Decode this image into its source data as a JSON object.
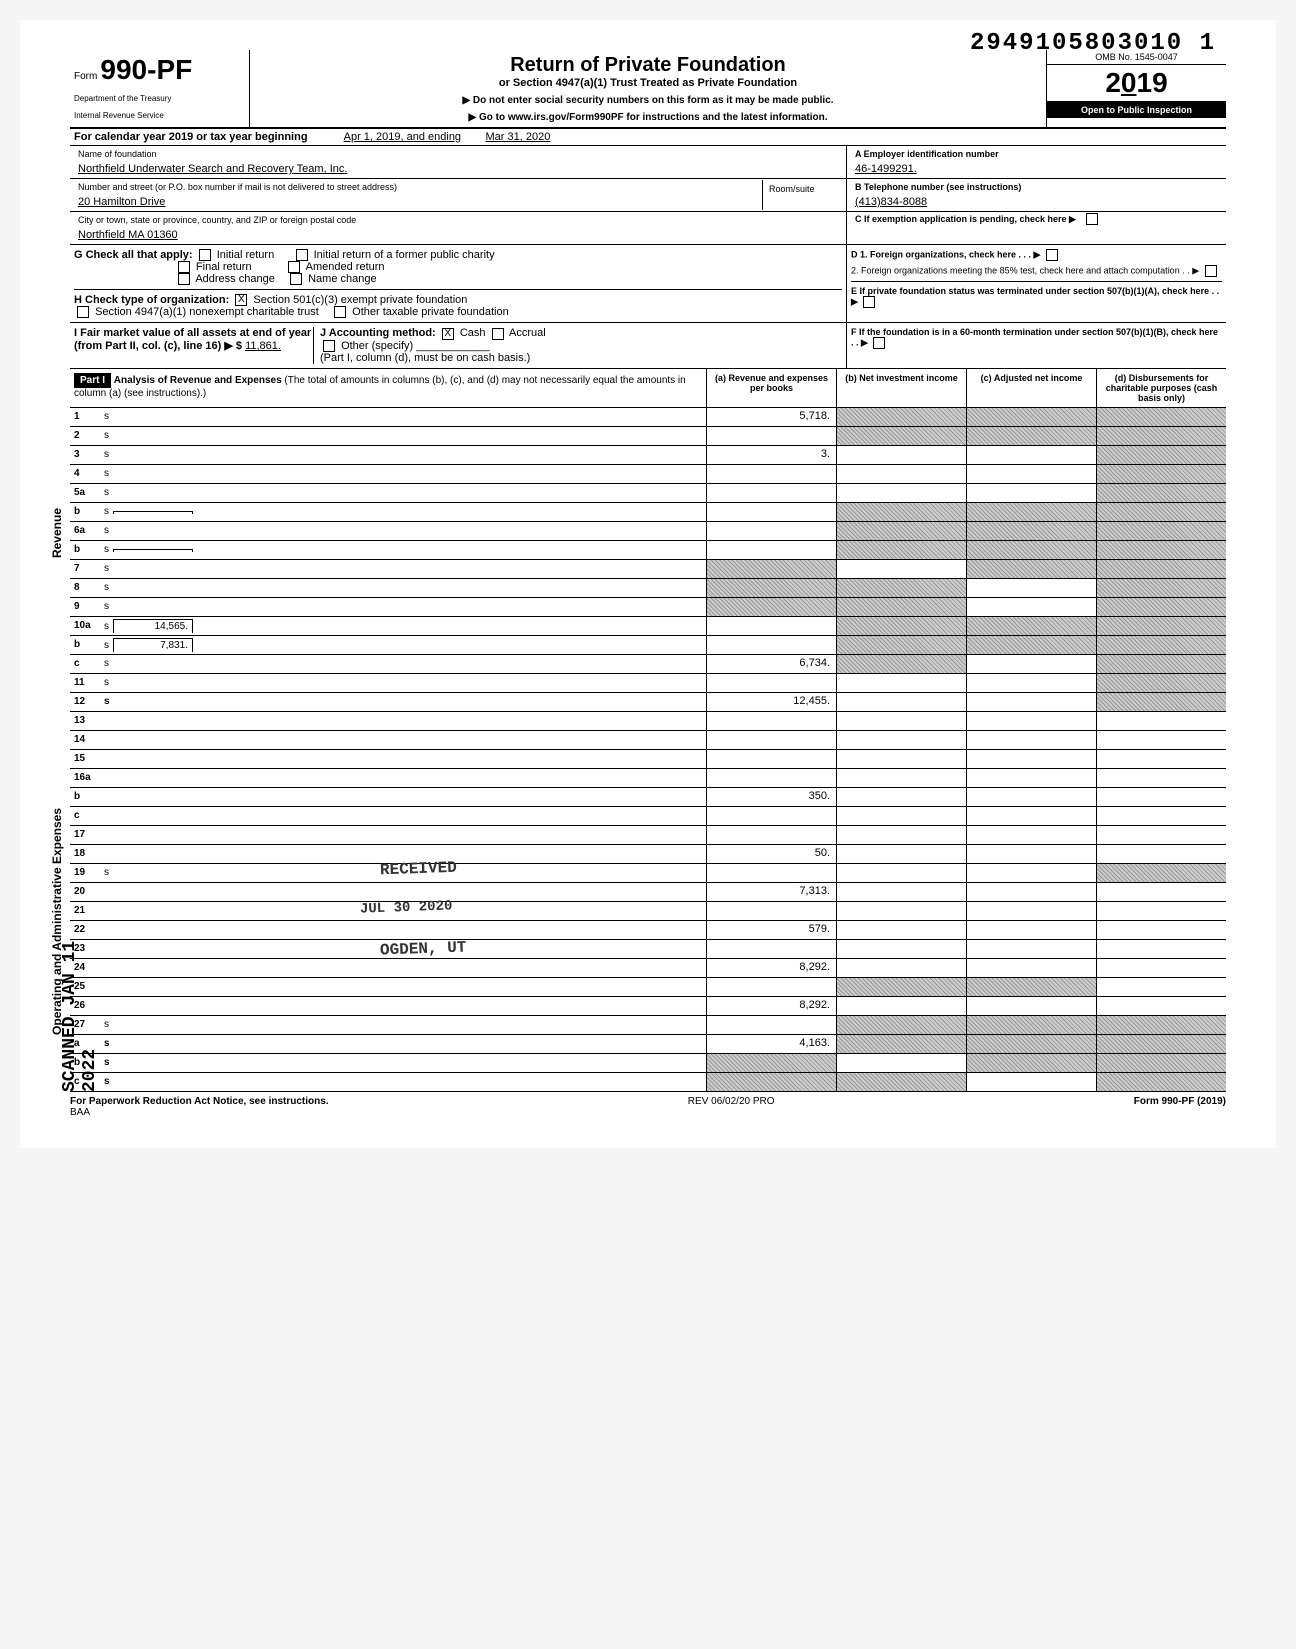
{
  "barcode": "2949105803010 1",
  "form_number_prefix": "Form",
  "form_number": "990-PF",
  "dept1": "Department of the Treasury",
  "dept2": "Internal Revenue Service",
  "title_main": "Return of Private Foundation",
  "title_sub": "or Section 4947(a)(1) Trust Treated as Private Foundation",
  "title_note1": "▶ Do not enter social security numbers on this form as it may be made public.",
  "title_note2": "▶ Go to www.irs.gov/Form990PF for instructions and the latest information.",
  "omb": "OMB No. 1545-0047",
  "year": "2019",
  "inspection": "Open to Public Inspection",
  "cal_year": "For calendar year 2019 or tax year beginning",
  "tax_begin": "Apr 1, 2019, and ending",
  "tax_end": "Mar 31, 2020",
  "name_label": "Name of foundation",
  "name_value": "Northfield Underwater Search and Recovery Team, Inc.",
  "ein_label": "A  Employer identification number",
  "ein_value": "46-1499291.",
  "addr_label": "Number and street (or P.O. box number if mail is not delivered to street address)",
  "addr_value": "20 Hamilton Drive",
  "room_label": "Room/suite",
  "phone_label": "B  Telephone number (see instructions)",
  "phone_value": "(413)834-8088",
  "city_label": "City or town, state or province, country, and ZIP or foreign postal code",
  "city_value": "Northfield MA 01360",
  "c_label": "C  If exemption application is pending, check here ▶",
  "g_label": "G  Check all that apply:",
  "g_opts": [
    "Initial return",
    "Initial return of a former public charity",
    "Final return",
    "Amended return",
    "Address change",
    "Name change"
  ],
  "d1": "D 1. Foreign organizations, check here . . . ▶",
  "d2": "2. Foreign organizations meeting the 85% test, check here and attach computation . . ▶",
  "h_label": "H  Check type of organization:",
  "h_501": "Section 501(c)(3) exempt private foundation",
  "h_4947": "Section 4947(a)(1) nonexempt charitable trust",
  "h_other": "Other taxable private foundation",
  "e_label": "E  If private foundation status was terminated under section 507(b)(1)(A), check here . . ▶",
  "i_label": "I  Fair market value of all assets at end of year (from Part II, col. (c), line 16) ▶ $",
  "i_value": "11,861.",
  "j_label": "J  Accounting method:",
  "j_cash": "Cash",
  "j_accrual": "Accrual",
  "j_other": "Other (specify)",
  "j_note": "(Part I, column (d), must be on cash basis.)",
  "f_label": "F  If the foundation is in a 60-month termination under section 507(b)(1)(B), check here . . ▶",
  "part1": "Part I",
  "part1_title": "Analysis of Revenue and Expenses",
  "part1_note": "(The total of amounts in columns (b), (c), and (d) may not necessarily equal the amounts in column (a) (see instructions).)",
  "col_a": "(a) Revenue and expenses per books",
  "col_b": "(b) Net investment income",
  "col_c": "(c) Adjusted net income",
  "col_d": "(d) Disbursements for charitable purposes (cash basis only)",
  "side_revenue": "Revenue",
  "side_expenses": "Operating and Administrative Expenses",
  "scanned": "SCANNED JAN 11 2022",
  "lines": [
    {
      "n": "1",
      "d": "s",
      "a": "5,718.",
      "b": "s",
      "c": "s"
    },
    {
      "n": "2",
      "d": "s",
      "a": "",
      "b": "s",
      "c": "s"
    },
    {
      "n": "3",
      "d": "s",
      "a": "3.",
      "b": "",
      "c": ""
    },
    {
      "n": "4",
      "d": "s",
      "a": "",
      "b": "",
      "c": ""
    },
    {
      "n": "5a",
      "d": "s",
      "a": "",
      "b": "",
      "c": ""
    },
    {
      "n": "b",
      "d": "s",
      "a": "",
      "b": "s",
      "c": "s",
      "inset": ""
    },
    {
      "n": "6a",
      "d": "s",
      "a": "",
      "b": "s",
      "c": "s"
    },
    {
      "n": "b",
      "d": "s",
      "a": "",
      "b": "s",
      "c": "s",
      "inset": ""
    },
    {
      "n": "7",
      "d": "s",
      "a": "s",
      "b": "",
      "c": "s"
    },
    {
      "n": "8",
      "d": "s",
      "a": "s",
      "b": "s",
      "c": ""
    },
    {
      "n": "9",
      "d": "s",
      "a": "s",
      "b": "s",
      "c": ""
    },
    {
      "n": "10a",
      "d": "s",
      "a": "",
      "b": "s",
      "c": "s",
      "inset": "14,565."
    },
    {
      "n": "b",
      "d": "s",
      "a": "",
      "b": "s",
      "c": "s",
      "inset": "7,831."
    },
    {
      "n": "c",
      "d": "s",
      "a": "6,734.",
      "b": "s",
      "c": ""
    },
    {
      "n": "11",
      "d": "s",
      "a": "",
      "b": "",
      "c": ""
    },
    {
      "n": "12",
      "d": "s",
      "a": "12,455.",
      "b": "",
      "c": "",
      "bold": true
    },
    {
      "n": "13",
      "d": "",
      "a": "",
      "b": "",
      "c": ""
    },
    {
      "n": "14",
      "d": "",
      "a": "",
      "b": "",
      "c": ""
    },
    {
      "n": "15",
      "d": "",
      "a": "",
      "b": "",
      "c": ""
    },
    {
      "n": "16a",
      "d": "",
      "a": "",
      "b": "",
      "c": ""
    },
    {
      "n": "b",
      "d": "",
      "a": "350.",
      "b": "",
      "c": ""
    },
    {
      "n": "c",
      "d": "",
      "a": "",
      "b": "",
      "c": ""
    },
    {
      "n": "17",
      "d": "",
      "a": "",
      "b": "",
      "c": ""
    },
    {
      "n": "18",
      "d": "",
      "a": "50.",
      "b": "",
      "c": ""
    },
    {
      "n": "19",
      "d": "s",
      "a": "",
      "b": "",
      "c": ""
    },
    {
      "n": "20",
      "d": "",
      "a": "7,313.",
      "b": "",
      "c": ""
    },
    {
      "n": "21",
      "d": "",
      "a": "",
      "b": "",
      "c": ""
    },
    {
      "n": "22",
      "d": "",
      "a": "579.",
      "b": "",
      "c": ""
    },
    {
      "n": "23",
      "d": "",
      "a": "",
      "b": "",
      "c": ""
    },
    {
      "n": "24",
      "d": "",
      "a": "8,292.",
      "b": "",
      "c": "",
      "bold": true
    },
    {
      "n": "25",
      "d": "",
      "a": "",
      "b": "s",
      "c": "s"
    },
    {
      "n": "26",
      "d": "",
      "a": "8,292.",
      "b": "",
      "c": "",
      "bold": true
    },
    {
      "n": "27",
      "d": "s",
      "a": "",
      "b": "s",
      "c": "s"
    },
    {
      "n": "a",
      "d": "s",
      "a": "4,163.",
      "b": "s",
      "c": "s",
      "bold": true
    },
    {
      "n": "b",
      "d": "s",
      "a": "s",
      "b": "",
      "c": "s",
      "bold": true
    },
    {
      "n": "c",
      "d": "s",
      "a": "s",
      "b": "s",
      "c": "",
      "bold": true
    }
  ],
  "footer_left": "For Paperwork Reduction Act Notice, see instructions.",
  "footer_baa": "BAA",
  "footer_mid": "REV 06/02/20 PRO",
  "footer_right": "Form 990-PF (2019)",
  "stamp_received": "RECEIVED",
  "stamp_date": "JUL 30 2020",
  "stamp_ogden": "OGDEN, UT"
}
